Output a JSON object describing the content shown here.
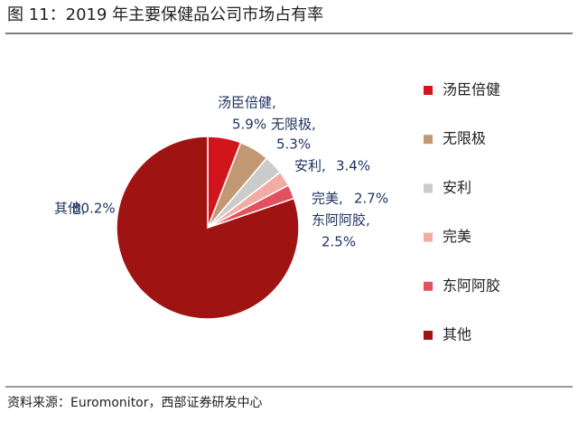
{
  "chart_data": {
    "type": "pie",
    "title": "图 11：2019 年主要保健品公司市场占有率",
    "categories": [
      "汤臣倍健",
      "无限极",
      "安利",
      "完美",
      "东阿阿胶",
      "其他"
    ],
    "values": [
      5.9,
      5.3,
      3.4,
      2.7,
      2.5,
      80.2
    ],
    "label_names": [
      "汤臣倍健,",
      "无限极,",
      "安利,",
      "完美,",
      "东阿阿胶,",
      "其他,"
    ],
    "value_labels": [
      "5.9%",
      "5.3%",
      "3.4%",
      "2.7%",
      "2.5%",
      "80.2%"
    ],
    "colors": [
      "#d2151d",
      "#c29774",
      "#cbcbcb",
      "#f2aca3",
      "#e3505e",
      "#a01313"
    ],
    "legend": "right",
    "source": "资料来源：Euromonitor，西部证券研发中心"
  }
}
